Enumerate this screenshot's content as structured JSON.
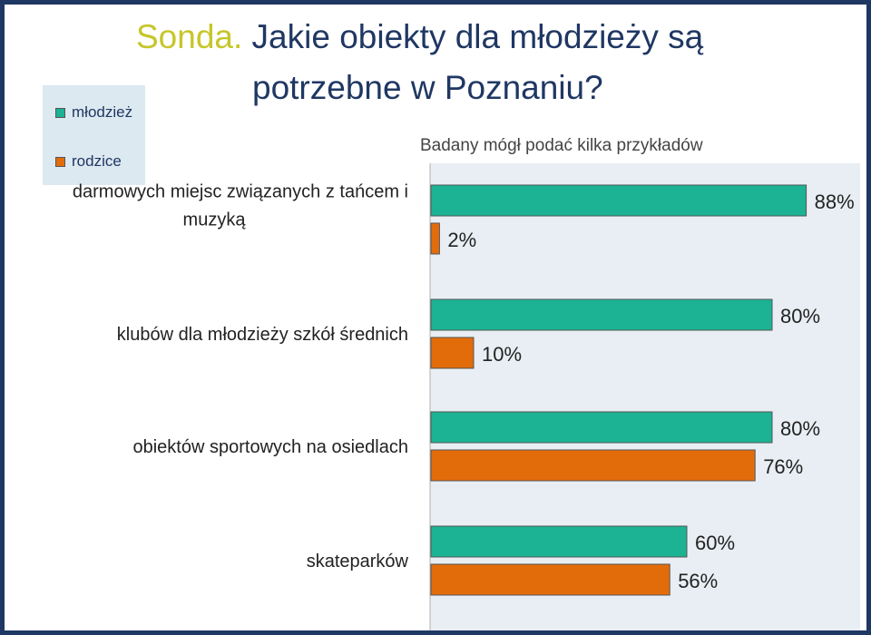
{
  "header": {
    "title_prefix": "Sonda.",
    "title_rest": " Jakie obiekty  dla młodzieży są",
    "title_line2": "potrzebne w Poznaniu?",
    "subtitle": "Badany mógł podać kilka przykładów"
  },
  "legend": {
    "items": [
      {
        "label": "młodzież",
        "color": "#1bb394"
      },
      {
        "label": "rodzice",
        "color": "#e36c0a"
      }
    ]
  },
  "chart_data": {
    "type": "bar",
    "orientation": "horizontal",
    "categories": [
      [
        "darmowych miejsc związanych z tańcem i",
        "muzyką"
      ],
      [
        "klubów dla młodzieży szkół średnich"
      ],
      [
        "obiektów sportowych na osiedlach"
      ],
      [
        "skateparków"
      ]
    ],
    "series": [
      {
        "name": "młodzież",
        "color": "#1bb394",
        "values": [
          88,
          80,
          80,
          60
        ]
      },
      {
        "name": "rodzice",
        "color": "#e36c0a",
        "values": [
          2,
          10,
          76,
          56
        ]
      }
    ],
    "value_suffix": "%",
    "xlim": [
      0,
      100
    ],
    "legend_position": "top-left",
    "grid": false
  }
}
